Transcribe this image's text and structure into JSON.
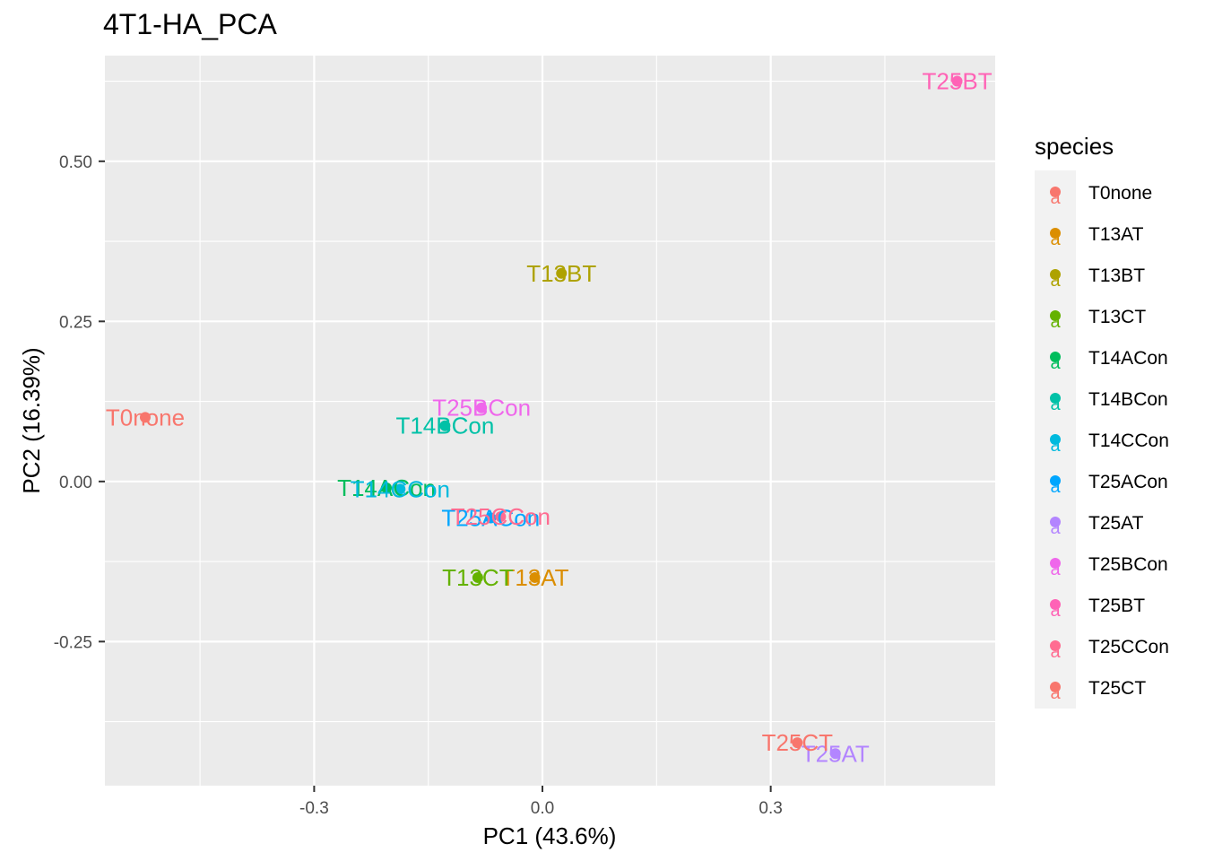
{
  "chart_data": {
    "type": "scatter",
    "title": "4T1-HA_PCA",
    "xlabel": "PC1 (43.6%)",
    "ylabel": "PC2 (16.39%)",
    "xlim": [
      -0.575,
      0.595
    ],
    "ylim": [
      -0.475,
      0.665
    ],
    "x_ticks": [
      -0.3,
      0.0,
      0.3
    ],
    "x_tick_labels": [
      "-0.3",
      "0.0",
      "0.3"
    ],
    "y_ticks": [
      -0.25,
      0.0,
      0.25,
      0.5
    ],
    "y_tick_labels": [
      "-0.25",
      "0.00",
      "0.25",
      "0.50"
    ],
    "grid": true,
    "legend_title": "species",
    "legend_position": "right",
    "legend_key_glyph": "a",
    "series": [
      {
        "name": "T0none",
        "color": "#F8766D",
        "x": -0.522,
        "y": 0.1
      },
      {
        "name": "T13AT",
        "color": "#DB8E00",
        "x": -0.01,
        "y": -0.15
      },
      {
        "name": "T13BT",
        "color": "#AEA200",
        "x": 0.025,
        "y": 0.325
      },
      {
        "name": "T13CT",
        "color": "#64B200",
        "x": -0.085,
        "y": -0.15
      },
      {
        "name": "T14ACon",
        "color": "#00BD5C",
        "x": -0.205,
        "y": -0.01
      },
      {
        "name": "T14BCon",
        "color": "#00C1A7",
        "x": -0.128,
        "y": 0.087
      },
      {
        "name": "T14CCon",
        "color": "#00BADE",
        "x": -0.187,
        "y": -0.012
      },
      {
        "name": "T25ACon",
        "color": "#00A6FF",
        "x": -0.068,
        "y": -0.057
      },
      {
        "name": "T25AT",
        "color": "#B385FF",
        "x": 0.385,
        "y": -0.425
      },
      {
        "name": "T25BCon",
        "color": "#EF67EB",
        "x": -0.08,
        "y": 0.115
      },
      {
        "name": "T25BT",
        "color": "#FF63B6",
        "x": 0.545,
        "y": 0.625
      },
      {
        "name": "T25CCon",
        "color": "#FF6C91",
        "x": -0.055,
        "y": -0.055
      },
      {
        "name": "T25CT",
        "color": "#F8766D",
        "x": 0.335,
        "y": -0.408
      }
    ]
  }
}
